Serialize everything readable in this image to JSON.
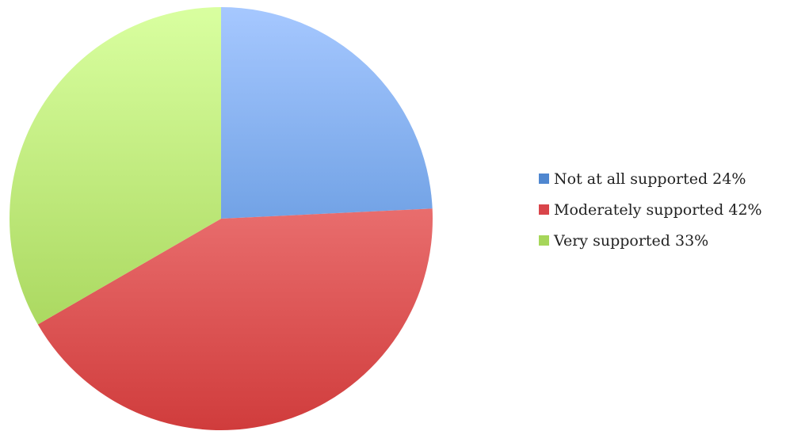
{
  "chart_data": {
    "type": "pie",
    "title": "",
    "categories": [
      "Not at all supported",
      "Moderately supported",
      "Very supported"
    ],
    "values": [
      24,
      42,
      33
    ],
    "unit": "%",
    "start_angle_deg": 0,
    "direction": "clockwise",
    "legend_position": "right",
    "legend": [
      {
        "label": "Not at all supported 24%"
      },
      {
        "label": "Moderately supported 42%"
      },
      {
        "label": "Very supported 33%"
      }
    ],
    "colors": [
      {
        "light": "#a6c8ff",
        "dark": "#3e7dcc",
        "swatch": "#4f87d0"
      },
      {
        "light": "#ff9a9a",
        "dark": "#d03c3c",
        "swatch": "#d9454a"
      },
      {
        "light": "#d9ffa0",
        "dark": "#9ccc4c",
        "swatch": "#a6d65a"
      }
    ]
  }
}
